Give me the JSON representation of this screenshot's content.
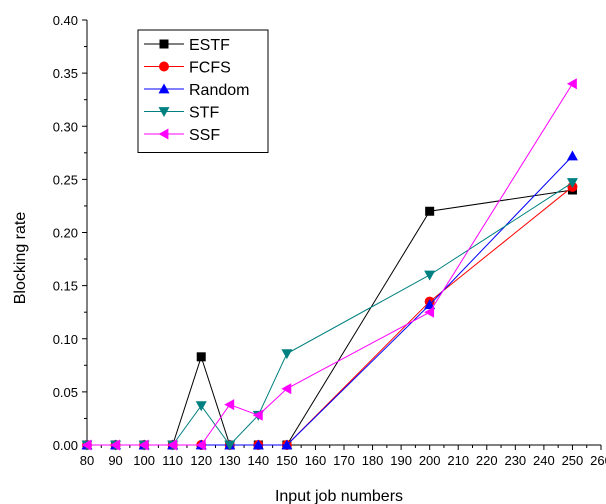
{
  "chart_data": {
    "type": "line",
    "title": "",
    "xlabel": "Input job numbers",
    "ylabel": "Blocking rate",
    "xlim": [
      80,
      260
    ],
    "ylim": [
      0.0,
      0.4
    ],
    "x_ticks": [
      80,
      90,
      100,
      110,
      120,
      130,
      140,
      150,
      160,
      170,
      180,
      190,
      200,
      210,
      220,
      230,
      240,
      250,
      260
    ],
    "y_ticks": [
      0.0,
      0.05,
      0.1,
      0.15,
      0.2,
      0.25,
      0.3,
      0.35,
      0.4
    ],
    "x_tick_labels": [
      "80",
      "90",
      "100",
      "110",
      "120",
      "130",
      "140",
      "150",
      "160",
      "170",
      "180",
      "190",
      "200",
      "210",
      "220",
      "230",
      "240",
      "250",
      "260"
    ],
    "y_tick_labels": [
      "0.00",
      "0.05",
      "0.10",
      "0.15",
      "0.20",
      "0.25",
      "0.30",
      "0.35",
      "0.40"
    ],
    "grid": false,
    "legend_position": "top-left",
    "x": [
      80,
      90,
      100,
      110,
      120,
      130,
      140,
      150,
      200,
      250
    ],
    "series": [
      {
        "name": "ESTF",
        "color": "#000000",
        "marker": "square",
        "values": [
          0.0,
          0.0,
          0.0,
          0.0,
          0.083,
          0.0,
          0.0,
          0.0,
          0.22,
          0.24
        ]
      },
      {
        "name": "FCFS",
        "color": "#ff0000",
        "marker": "circle",
        "values": [
          0.0,
          0.0,
          0.0,
          0.0,
          0.0,
          0.0,
          0.0,
          0.0,
          0.135,
          0.243
        ]
      },
      {
        "name": "Random",
        "color": "#0000ff",
        "marker": "triangle-up",
        "values": [
          0.0,
          0.0,
          0.0,
          0.0,
          0.0,
          0.0,
          0.0,
          0.0,
          0.132,
          0.272
        ]
      },
      {
        "name": "STF",
        "color": "#008080",
        "marker": "triangle-down",
        "values": [
          0.0,
          0.0,
          0.0,
          0.0,
          0.037,
          0.0,
          0.028,
          0.086,
          0.16,
          0.247
        ]
      },
      {
        "name": "SSF",
        "color": "#ff00ff",
        "marker": "triangle-left",
        "values": [
          0.0,
          0.0,
          0.0,
          0.0,
          0.0,
          0.038,
          0.028,
          0.053,
          0.125,
          0.34
        ]
      }
    ]
  }
}
